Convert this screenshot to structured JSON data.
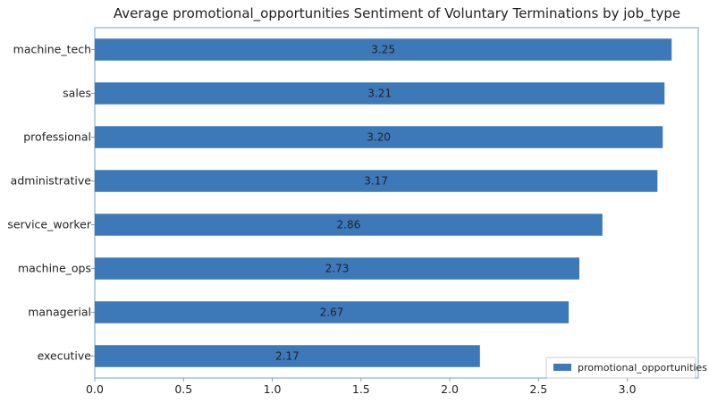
{
  "chart_data": {
    "type": "bar",
    "orientation": "horizontal",
    "title": "Average promotional_opportunities Sentiment of Voluntary Terminations by job_type",
    "xlabel": "",
    "ylabel": "",
    "categories": [
      "machine_tech",
      "sales",
      "professional",
      "administrative",
      "service_worker",
      "machine_ops",
      "managerial",
      "executive"
    ],
    "series": [
      {
        "name": "promotional_opportunities",
        "values": [
          3.25,
          3.21,
          3.2,
          3.17,
          2.86,
          2.73,
          2.67,
          2.17
        ],
        "labels": [
          "3.25",
          "3.21",
          "3.20",
          "3.17",
          "2.86",
          "2.73",
          "2.67",
          "2.17"
        ]
      }
    ],
    "xlim": [
      0,
      3.4
    ],
    "xticks": [
      0.0,
      0.5,
      1.0,
      1.5,
      2.0,
      2.5,
      3.0
    ],
    "xtick_labels": [
      "0.0",
      "0.5",
      "1.0",
      "1.5",
      "2.0",
      "2.5",
      "3.0"
    ],
    "grid": false,
    "legend_position": "bottom-right",
    "bar_color": "#3d78b8",
    "axis_color": "#7f9fc4"
  }
}
